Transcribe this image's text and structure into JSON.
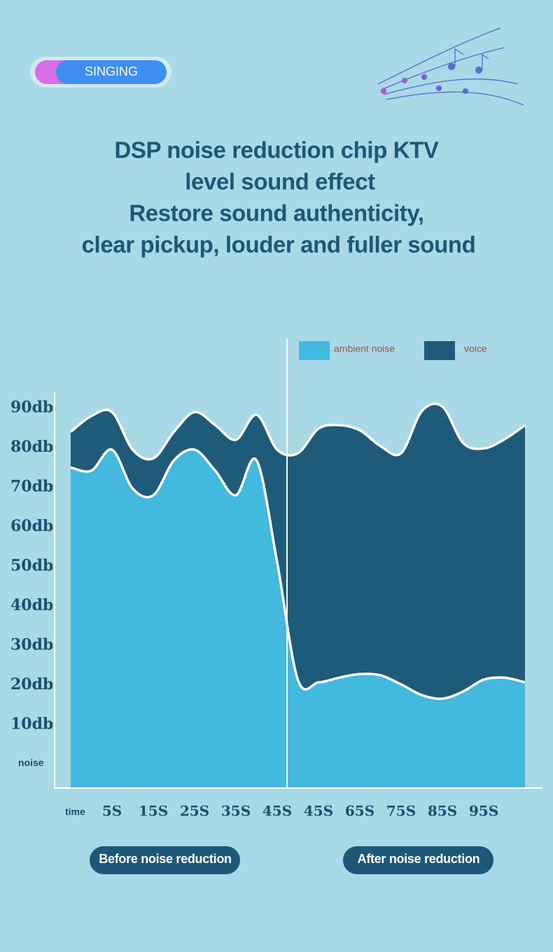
{
  "badge": "SINGING",
  "title_lines": [
    "DSP noise reduction chip KTV",
    "level sound effect",
    "Restore sound authenticity,",
    "clear pickup, louder and fuller sound"
  ],
  "chart_data": {
    "type": "area",
    "x_label": "time",
    "y_label": "noise",
    "categories": [
      null,
      null,
      "5S",
      null,
      "15S",
      null,
      "25S",
      null,
      "35S",
      null,
      "45S",
      null,
      "45S",
      null,
      "65S",
      null,
      "75S",
      null,
      "85S",
      null,
      "95S",
      null,
      null
    ],
    "series": [
      {
        "name": "ambient noise",
        "color": "#44b9e0",
        "values": [
          75,
          74.2,
          79.5,
          69.7,
          68,
          76.8,
          79.5,
          74.2,
          68,
          76.8,
          51,
          21.4,
          20.7,
          21.9,
          22.8,
          22.5,
          20.2,
          17.5,
          16.6,
          18.4,
          21.4,
          21.9,
          20.7
        ]
      },
      {
        "name": "voice",
        "color": "#1d5b78",
        "values": [
          84,
          88,
          89,
          79.5,
          77.3,
          84,
          89,
          85.7,
          82,
          88.3,
          79.5,
          78.6,
          84.8,
          85.7,
          84.4,
          80.4,
          78.6,
          89.2,
          90.4,
          81.2,
          79.8,
          82.1,
          85.7
        ]
      }
    ],
    "ylim": [
      -6,
      94
    ],
    "yticks": [
      {
        "value": 10,
        "label": "10db"
      },
      {
        "value": 20,
        "label": "20db"
      },
      {
        "value": 30,
        "label": "30db"
      },
      {
        "value": 40,
        "label": "40db"
      },
      {
        "value": 50,
        "label": "50db"
      },
      {
        "value": 60,
        "label": "60db"
      },
      {
        "value": 70,
        "label": "70db"
      },
      {
        "value": 80,
        "label": "80db"
      },
      {
        "value": 90,
        "label": "90db"
      }
    ]
  },
  "buttons": [
    "Before noise reduction",
    "After noise reduction"
  ]
}
